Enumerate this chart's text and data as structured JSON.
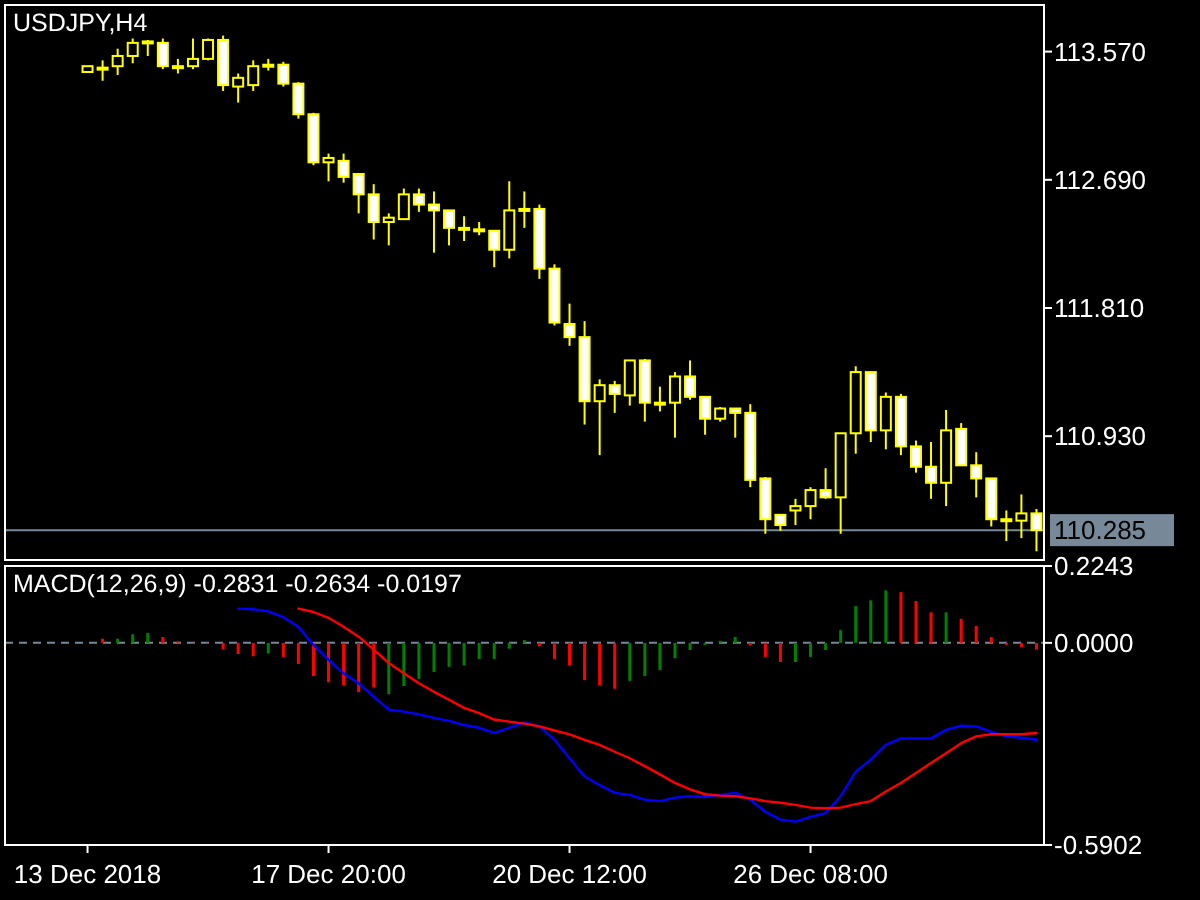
{
  "chart_data": [
    {
      "type": "candlestick",
      "title": "USDJPY,H4",
      "color": "#ffff00",
      "tick_labels": "y",
      "categories": [
        null,
        null,
        null,
        null,
        null,
        null,
        null,
        null,
        null,
        null,
        null,
        null,
        null,
        null,
        null,
        null,
        null,
        null,
        null,
        null,
        null,
        null,
        null,
        null,
        null,
        null,
        null,
        null,
        null,
        null,
        null,
        null,
        null,
        null,
        null,
        null,
        null,
        null,
        null,
        null,
        null,
        null,
        null,
        null,
        null,
        null,
        null,
        null,
        null,
        null,
        null,
        null,
        null,
        null,
        null,
        null,
        null,
        null,
        null,
        null,
        null,
        null,
        null,
        null
      ],
      "ohlc": [
        [
          113.43,
          113.47,
          113.43,
          113.47
        ],
        [
          113.46,
          113.51,
          113.37,
          113.46
        ],
        [
          113.47,
          113.59,
          113.41,
          113.54
        ],
        [
          113.54,
          113.66,
          113.49,
          113.63
        ],
        [
          113.64,
          113.65,
          113.54,
          113.64
        ],
        [
          113.63,
          113.66,
          113.45,
          113.47
        ],
        [
          113.47,
          113.52,
          113.42,
          113.47
        ],
        [
          113.47,
          113.66,
          113.45,
          113.52
        ],
        [
          113.52,
          113.66,
          113.51,
          113.65
        ],
        [
          113.65,
          113.68,
          113.3,
          113.34
        ],
        [
          113.33,
          113.42,
          113.22,
          113.39
        ],
        [
          113.34,
          113.51,
          113.3,
          113.47
        ],
        [
          113.48,
          113.52,
          113.44,
          113.48
        ],
        [
          113.48,
          113.5,
          113.33,
          113.35
        ],
        [
          113.35,
          113.36,
          113.11,
          113.14
        ],
        [
          113.14,
          113.15,
          112.79,
          112.81
        ],
        [
          112.81,
          112.87,
          112.68,
          112.84
        ],
        [
          112.82,
          112.87,
          112.67,
          112.71
        ],
        [
          112.73,
          112.73,
          112.46,
          112.59
        ],
        [
          112.59,
          112.66,
          112.28,
          112.4
        ],
        [
          112.4,
          112.46,
          112.24,
          112.43
        ],
        [
          112.42,
          112.63,
          112.42,
          112.59
        ],
        [
          112.59,
          112.63,
          112.47,
          112.52
        ],
        [
          112.52,
          112.61,
          112.19,
          112.48
        ],
        [
          112.48,
          112.48,
          112.24,
          112.36
        ],
        [
          112.36,
          112.44,
          112.27,
          112.36
        ],
        [
          112.35,
          112.4,
          112.31,
          112.35
        ],
        [
          112.34,
          112.34,
          112.09,
          112.21
        ],
        [
          112.21,
          112.68,
          112.15,
          112.48
        ],
        [
          112.49,
          112.61,
          112.36,
          112.49
        ],
        [
          112.49,
          112.52,
          112.01,
          112.08
        ],
        [
          112.08,
          112.11,
          111.69,
          111.71
        ],
        [
          111.7,
          111.84,
          111.55,
          111.61
        ],
        [
          111.61,
          111.72,
          111.01,
          111.17
        ],
        [
          111.17,
          111.32,
          110.8,
          111.28
        ],
        [
          111.28,
          111.31,
          111.09,
          111.22
        ],
        [
          111.21,
          111.45,
          111.14,
          111.45
        ],
        [
          111.45,
          111.46,
          111.03,
          111.16
        ],
        [
          111.16,
          111.27,
          111.1,
          111.16
        ],
        [
          111.16,
          111.37,
          110.92,
          111.34
        ],
        [
          111.34,
          111.45,
          111.18,
          111.2
        ],
        [
          111.2,
          111.2,
          110.94,
          111.05
        ],
        [
          111.05,
          111.13,
          111.03,
          111.12
        ],
        [
          111.12,
          111.12,
          110.92,
          111.09
        ],
        [
          111.09,
          111.15,
          110.58,
          110.63
        ],
        [
          110.64,
          110.65,
          110.26,
          110.36
        ],
        [
          110.39,
          110.39,
          110.28,
          110.32
        ],
        [
          110.42,
          110.5,
          110.32,
          110.45
        ],
        [
          110.45,
          110.58,
          110.36,
          110.56
        ],
        [
          110.56,
          110.71,
          110.5,
          110.51
        ],
        [
          110.51,
          110.95,
          110.26,
          110.95
        ],
        [
          110.95,
          111.41,
          110.81,
          111.37
        ],
        [
          111.37,
          111.37,
          110.89,
          110.97
        ],
        [
          110.97,
          111.23,
          110.84,
          111.2
        ],
        [
          111.2,
          111.22,
          110.8,
          110.86
        ],
        [
          110.86,
          110.9,
          110.68,
          110.72
        ],
        [
          110.72,
          110.89,
          110.5,
          110.61
        ],
        [
          110.61,
          111.11,
          110.45,
          110.97
        ],
        [
          110.98,
          111.02,
          110.73,
          110.73
        ],
        [
          110.73,
          110.82,
          110.51,
          110.64
        ],
        [
          110.64,
          110.64,
          110.31,
          110.36
        ],
        [
          110.36,
          110.42,
          110.21,
          110.36
        ],
        [
          110.35,
          110.53,
          110.23,
          110.4
        ],
        [
          110.4,
          110.43,
          110.14,
          110.285
        ]
      ],
      "ylim": [
        110.08,
        113.89
      ],
      "yticks": [
        {
          "value": 113.57,
          "label": "113.570"
        },
        {
          "value": 112.69,
          "label": "112.690"
        },
        {
          "value": 111.81,
          "label": "111.810"
        },
        {
          "value": 110.93,
          "label": "110.930"
        }
      ],
      "ref_lines": [
        {
          "axis": "y",
          "value": 110.285,
          "label": "110.285",
          "color": "#778899"
        }
      ]
    },
    {
      "type": "bar",
      "title": "MACD(12,26,9) -0.2831 -0.2634 -0.0197",
      "categories": [
        "13 Dec 2018",
        null,
        null,
        null,
        null,
        null,
        null,
        null,
        null,
        null,
        null,
        null,
        null,
        null,
        null,
        null,
        "17 Dec 20:00",
        null,
        null,
        null,
        null,
        null,
        null,
        null,
        null,
        null,
        null,
        null,
        null,
        null,
        null,
        null,
        "20 Dec 12:00",
        null,
        null,
        null,
        null,
        null,
        null,
        null,
        null,
        null,
        null,
        null,
        null,
        null,
        null,
        null,
        "26 Dec 08:00",
        null,
        null,
        null,
        null,
        null,
        null,
        null,
        null,
        null,
        null,
        null,
        null,
        null,
        null,
        null
      ],
      "ylim": [
        -0.5902,
        0.2243
      ],
      "yticks": [
        {
          "value": 0.2243,
          "label": "0.2243"
        },
        {
          "value": 0,
          "label": "0.0000"
        },
        {
          "value": -0.5902,
          "label": "-0.5902"
        }
      ],
      "ref_lines": [
        {
          "axis": "y",
          "value": 0,
          "label": null,
          "color": "#778899",
          "line_style": "dashed"
        }
      ],
      "series": [
        {
          "type": "bar",
          "values": [
            0,
            0.012,
            0.012,
            0.025,
            0.029,
            0.017,
            0.004,
            -0.002,
            -0.002,
            -0.019,
            -0.033,
            -0.039,
            -0.031,
            -0.041,
            -0.062,
            -0.097,
            -0.115,
            -0.124,
            -0.144,
            -0.13,
            -0.15,
            -0.126,
            -0.105,
            -0.085,
            -0.07,
            -0.066,
            -0.047,
            -0.047,
            -0.017,
            0.008,
            -0.01,
            -0.047,
            -0.066,
            -0.109,
            -0.124,
            -0.134,
            -0.111,
            -0.097,
            -0.08,
            -0.045,
            -0.021,
            -0.006,
            0.006,
            0.017,
            -0.008,
            -0.041,
            -0.056,
            -0.056,
            -0.041,
            -0.021,
            0.037,
            0.107,
            0.124,
            0.153,
            0.148,
            0.122,
            0.089,
            0.089,
            0.07,
            0.049,
            0.017,
            -0.006,
            -0.012,
            -0.0197
          ],
          "colors": [
            "#008000",
            "#ff0000",
            "#008000",
            "#008000",
            "#008000",
            "#ff0000",
            "#ff0000",
            "#ff0000",
            "#ff0000",
            "#ff0000",
            "#ff0000",
            "#ff0000",
            "#008000",
            "#ff0000",
            "#ff0000",
            "#ff0000",
            "#ff0000",
            "#ff0000",
            "#ff0000",
            "#ff0000",
            "#008000",
            "#008000",
            "#008000",
            "#008000",
            "#008000",
            "#008000",
            "#008000",
            "#008000",
            "#008000",
            "#008000",
            "#ff0000",
            "#ff0000",
            "#ff0000",
            "#ff0000",
            "#ff0000",
            "#ff0000",
            "#008000",
            "#008000",
            "#008000",
            "#008000",
            "#008000",
            "#008000",
            "#008000",
            "#008000",
            "#ff0000",
            "#ff0000",
            "#ff0000",
            "#008000",
            "#008000",
            "#008000",
            "#008000",
            "#008000",
            "#008000",
            "#008000",
            "#ff0000",
            "#ff0000",
            "#ff0000",
            "#008000",
            "#ff0000",
            "#ff0000",
            "#ff0000",
            "#ff0000",
            "#ff0000",
            "#ff0000"
          ]
        },
        {
          "type": "line",
          "color": "#0000ff",
          "values": [
            null,
            null,
            null,
            null,
            null,
            null,
            null,
            null,
            null,
            null,
            0.1,
            0.098,
            0.092,
            0.075,
            0.047,
            -0.007,
            -0.05,
            -0.089,
            -0.118,
            -0.157,
            -0.195,
            -0.201,
            -0.209,
            -0.219,
            -0.228,
            -0.24,
            -0.248,
            -0.263,
            -0.248,
            -0.232,
            -0.244,
            -0.283,
            -0.337,
            -0.39,
            -0.415,
            -0.438,
            -0.444,
            -0.458,
            -0.462,
            -0.452,
            -0.448,
            -0.45,
            -0.444,
            -0.438,
            -0.458,
            -0.493,
            -0.516,
            -0.522,
            -0.508,
            -0.497,
            -0.448,
            -0.376,
            -0.341,
            -0.298,
            -0.279,
            -0.279,
            -0.279,
            -0.254,
            -0.242,
            -0.244,
            -0.26,
            -0.273,
            -0.277,
            -0.2831
          ]
        },
        {
          "type": "line",
          "color": "#ff0000",
          "values": [
            null,
            null,
            null,
            null,
            null,
            null,
            null,
            null,
            null,
            null,
            null,
            null,
            null,
            null,
            0.1,
            0.09,
            0.073,
            0.047,
            0.018,
            -0.02,
            -0.059,
            -0.089,
            -0.118,
            -0.143,
            -0.166,
            -0.19,
            -0.205,
            -0.224,
            -0.23,
            -0.236,
            -0.244,
            -0.256,
            -0.267,
            -0.283,
            -0.298,
            -0.318,
            -0.337,
            -0.36,
            -0.384,
            -0.409,
            -0.428,
            -0.442,
            -0.446,
            -0.448,
            -0.454,
            -0.462,
            -0.467,
            -0.473,
            -0.481,
            -0.483,
            -0.481,
            -0.471,
            -0.462,
            -0.434,
            -0.409,
            -0.38,
            -0.351,
            -0.322,
            -0.293,
            -0.273,
            -0.267,
            -0.267,
            -0.267,
            -0.2634
          ]
        }
      ]
    }
  ]
}
